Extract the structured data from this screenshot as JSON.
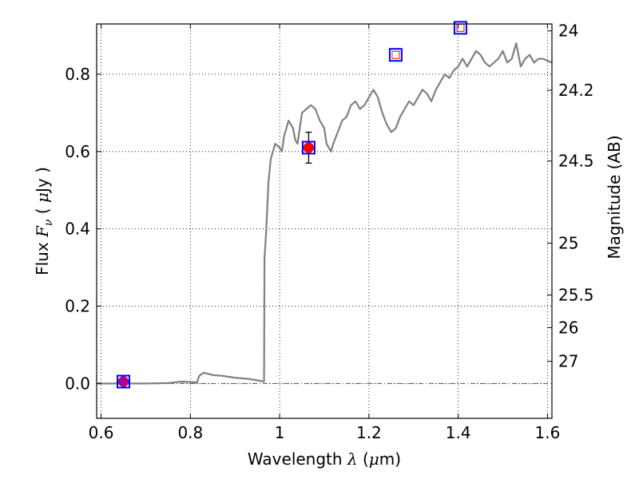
{
  "chart_data": {
    "type": "line",
    "xlabel_parts": [
      "Wavelength  ",
      "λ",
      " (",
      "μ",
      "m)"
    ],
    "ylabel_parts": [
      "Flux  ",
      "F",
      "ν",
      "  ( ",
      "μ",
      "Jy )"
    ],
    "y2label": "Magnitude (AB)",
    "xlim": [
      0.59,
      1.61
    ],
    "ylim": [
      -0.09,
      0.93
    ],
    "x_ticks": [
      0.6,
      0.8,
      1.0,
      1.2,
      1.4,
      1.6
    ],
    "x_tick_labels": [
      "0.6",
      "0.8",
      "1",
      "1.2",
      "1.4",
      "1.6"
    ],
    "y_ticks": [
      0.0,
      0.2,
      0.4,
      0.6,
      0.8
    ],
    "y_tick_labels": [
      "0.0",
      "0.2",
      "0.4",
      "0.6",
      "0.8"
    ],
    "y2_ticks": [
      24,
      24.2,
      24.5,
      25,
      25.5,
      26,
      27
    ],
    "y2_tick_labels": [
      "24",
      "24.2",
      "24.5",
      "25",
      "25.5",
      "26",
      "27"
    ],
    "grid": true,
    "colors": {
      "model": "#808080",
      "square_edge": "#0000ff",
      "measured_face": "#ff0000",
      "low_face": "#9900aa",
      "zero_line": "#555555"
    },
    "zero_line": 0.0,
    "model_spectrum": [
      [
        0.59,
        0.0
      ],
      [
        0.65,
        0.0
      ],
      [
        0.7,
        0.0
      ],
      [
        0.75,
        0.001
      ],
      [
        0.78,
        0.005
      ],
      [
        0.8,
        0.004
      ],
      [
        0.815,
        0.003
      ],
      [
        0.82,
        0.02
      ],
      [
        0.83,
        0.028
      ],
      [
        0.84,
        0.025
      ],
      [
        0.85,
        0.022
      ],
      [
        0.87,
        0.02
      ],
      [
        0.9,
        0.015
      ],
      [
        0.93,
        0.012
      ],
      [
        0.95,
        0.008
      ],
      [
        0.96,
        0.006
      ],
      [
        0.965,
        0.005
      ],
      [
        0.966,
        0.32
      ],
      [
        0.97,
        0.4
      ],
      [
        0.975,
        0.52
      ],
      [
        0.98,
        0.58
      ],
      [
        0.99,
        0.62
      ],
      [
        1.0,
        0.61
      ],
      [
        1.005,
        0.6
      ],
      [
        1.01,
        0.64
      ],
      [
        1.02,
        0.68
      ],
      [
        1.03,
        0.66
      ],
      [
        1.035,
        0.63
      ],
      [
        1.04,
        0.62
      ],
      [
        1.05,
        0.7
      ],
      [
        1.06,
        0.71
      ],
      [
        1.07,
        0.72
      ],
      [
        1.08,
        0.71
      ],
      [
        1.09,
        0.68
      ],
      [
        1.1,
        0.66
      ],
      [
        1.105,
        0.62
      ],
      [
        1.11,
        0.61
      ],
      [
        1.115,
        0.6
      ],
      [
        1.12,
        0.62
      ],
      [
        1.13,
        0.65
      ],
      [
        1.14,
        0.68
      ],
      [
        1.15,
        0.69
      ],
      [
        1.16,
        0.72
      ],
      [
        1.17,
        0.73
      ],
      [
        1.18,
        0.71
      ],
      [
        1.19,
        0.72
      ],
      [
        1.2,
        0.74
      ],
      [
        1.21,
        0.76
      ],
      [
        1.22,
        0.74
      ],
      [
        1.23,
        0.7
      ],
      [
        1.24,
        0.67
      ],
      [
        1.25,
        0.65
      ],
      [
        1.26,
        0.66
      ],
      [
        1.27,
        0.69
      ],
      [
        1.28,
        0.71
      ],
      [
        1.29,
        0.73
      ],
      [
        1.3,
        0.72
      ],
      [
        1.31,
        0.74
      ],
      [
        1.32,
        0.76
      ],
      [
        1.33,
        0.75
      ],
      [
        1.34,
        0.73
      ],
      [
        1.35,
        0.76
      ],
      [
        1.36,
        0.78
      ],
      [
        1.37,
        0.8
      ],
      [
        1.38,
        0.79
      ],
      [
        1.39,
        0.81
      ],
      [
        1.4,
        0.82
      ],
      [
        1.41,
        0.84
      ],
      [
        1.42,
        0.82
      ],
      [
        1.43,
        0.84
      ],
      [
        1.44,
        0.86
      ],
      [
        1.45,
        0.85
      ],
      [
        1.46,
        0.83
      ],
      [
        1.47,
        0.82
      ],
      [
        1.48,
        0.83
      ],
      [
        1.49,
        0.84
      ],
      [
        1.5,
        0.86
      ],
      [
        1.51,
        0.83
      ],
      [
        1.52,
        0.84
      ],
      [
        1.53,
        0.88
      ],
      [
        1.54,
        0.82
      ],
      [
        1.55,
        0.84
      ],
      [
        1.56,
        0.85
      ],
      [
        1.57,
        0.83
      ],
      [
        1.58,
        0.84
      ],
      [
        1.59,
        0.84
      ],
      [
        1.61,
        0.83
      ]
    ],
    "measured_points": [
      {
        "x": 0.65,
        "y": 0.005,
        "err": 0.008,
        "face": "low_face"
      },
      {
        "x": 1.065,
        "y": 0.61,
        "err": 0.04,
        "face": "measured_face"
      }
    ],
    "model_band_squares": [
      {
        "x": 0.65,
        "y": 0.005
      },
      {
        "x": 1.065,
        "y": 0.61
      },
      {
        "x": 1.26,
        "y": 0.85
      },
      {
        "x": 1.405,
        "y": 0.92
      }
    ]
  }
}
